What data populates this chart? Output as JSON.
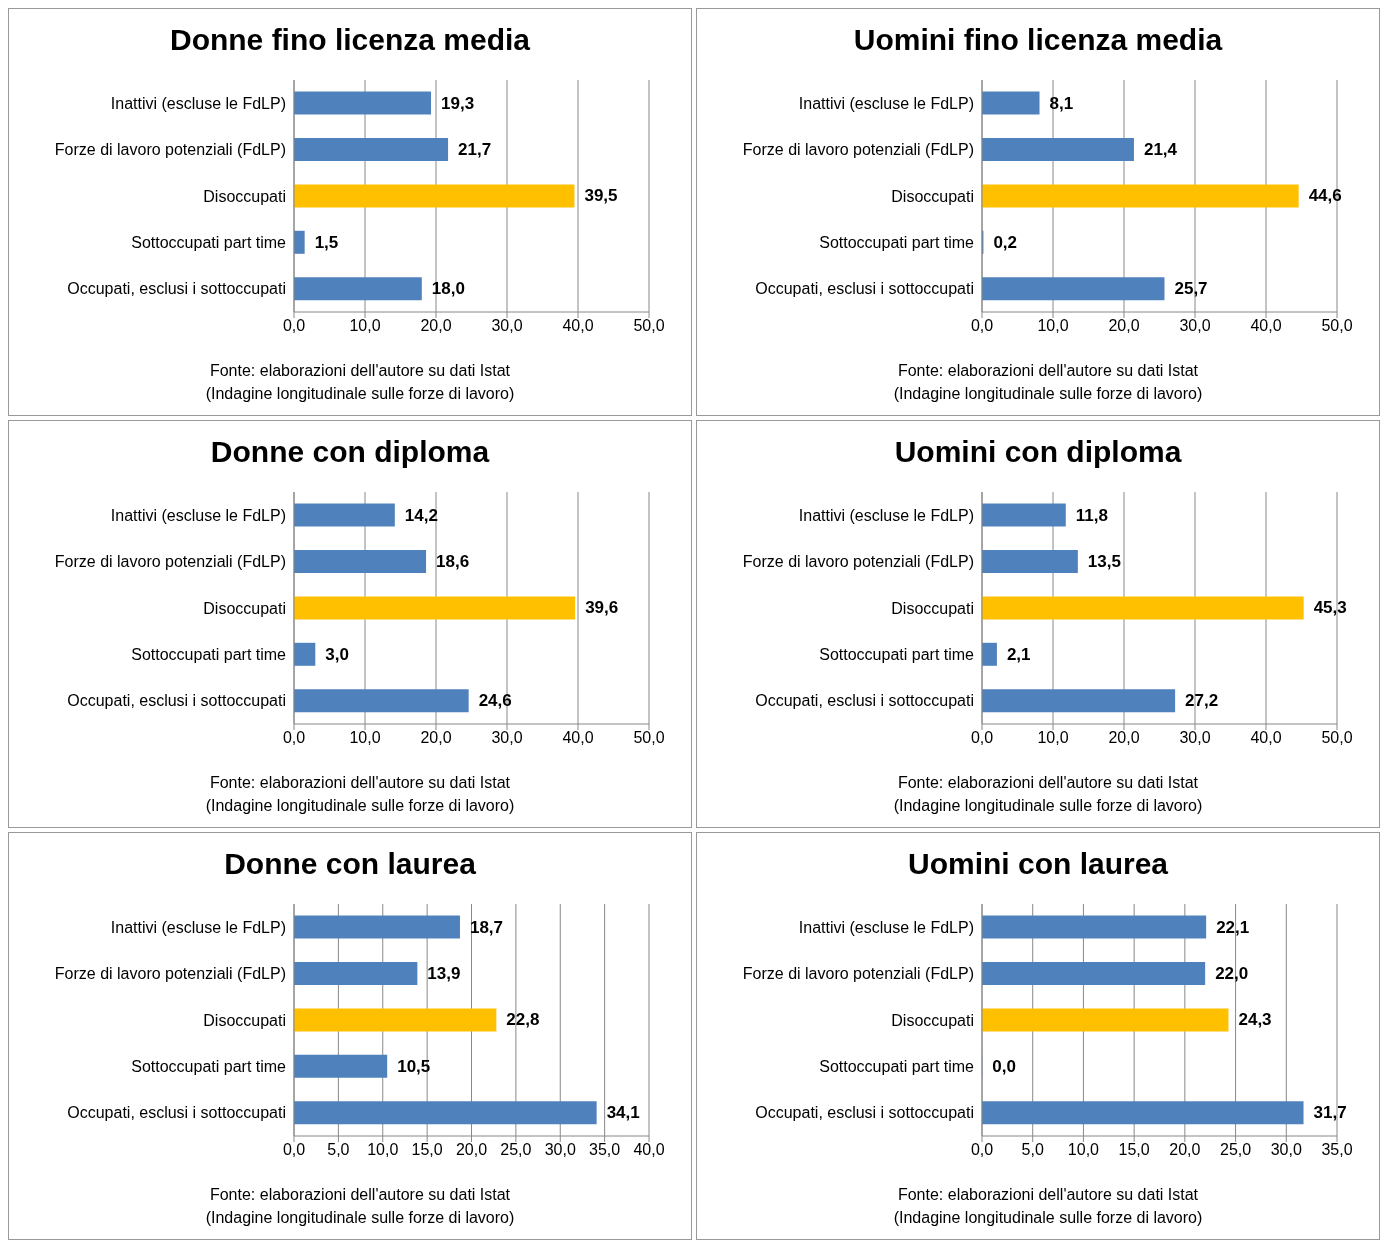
{
  "chart_data": [
    {
      "type": "bar",
      "orientation": "horizontal",
      "title": "Donne fino licenza media",
      "categories": [
        "Inattivi (escluse le FdLP)",
        "Forze di lavoro potenziali (FdLP)",
        "Disoccupati",
        "Sottoccupati part time",
        "Occupati, esclusi i sottoccupati"
      ],
      "values": [
        19.3,
        21.7,
        39.5,
        1.5,
        18.0
      ],
      "value_labels": [
        "19,3",
        "21,7",
        "39,5",
        "1,5",
        "18,0"
      ],
      "colors": [
        "#4f81bd",
        "#4f81bd",
        "#ffc000",
        "#4f81bd",
        "#4f81bd"
      ],
      "xlim": [
        0,
        50
      ],
      "xticks": [
        {
          "value": 0,
          "label": "0,0"
        },
        {
          "value": 10,
          "label": "10,0"
        },
        {
          "value": 20,
          "label": "20,0"
        },
        {
          "value": 30,
          "label": "30,0"
        },
        {
          "value": 40,
          "label": "40,0"
        },
        {
          "value": 50,
          "label": "50,0"
        }
      ],
      "grid": "x",
      "annotations": [
        "Fonte: elaborazioni dell'autore su dati Istat",
        "(Indagine longitudinale sulle forze di lavoro)"
      ]
    },
    {
      "type": "bar",
      "orientation": "horizontal",
      "title": "Uomini fino licenza media",
      "categories": [
        "Inattivi (escluse le FdLP)",
        "Forze di lavoro potenziali (FdLP)",
        "Disoccupati",
        "Sottoccupati part time",
        "Occupati, esclusi i sottoccupati"
      ],
      "values": [
        8.1,
        21.4,
        44.6,
        0.2,
        25.7
      ],
      "value_labels": [
        "8,1",
        "21,4",
        "44,6",
        "0,2",
        "25,7"
      ],
      "colors": [
        "#4f81bd",
        "#4f81bd",
        "#ffc000",
        "#4f81bd",
        "#4f81bd"
      ],
      "xlim": [
        0,
        50
      ],
      "xticks": [
        {
          "value": 0,
          "label": "0,0"
        },
        {
          "value": 10,
          "label": "10,0"
        },
        {
          "value": 20,
          "label": "20,0"
        },
        {
          "value": 30,
          "label": "30,0"
        },
        {
          "value": 40,
          "label": "40,0"
        },
        {
          "value": 50,
          "label": "50,0"
        }
      ],
      "grid": "x",
      "annotations": [
        "Fonte: elaborazioni dell'autore su dati Istat",
        "(Indagine longitudinale sulle forze di lavoro)"
      ]
    },
    {
      "type": "bar",
      "orientation": "horizontal",
      "title": "Donne con diploma",
      "categories": [
        "Inattivi (escluse le FdLP)",
        "Forze di lavoro potenziali (FdLP)",
        "Disoccupati",
        "Sottoccupati part time",
        "Occupati, esclusi i sottoccupati"
      ],
      "values": [
        14.2,
        18.6,
        39.6,
        3.0,
        24.6
      ],
      "value_labels": [
        "14,2",
        "18,6",
        "39,6",
        "3,0",
        "24,6"
      ],
      "colors": [
        "#4f81bd",
        "#4f81bd",
        "#ffc000",
        "#4f81bd",
        "#4f81bd"
      ],
      "xlim": [
        0,
        50
      ],
      "xticks": [
        {
          "value": 0,
          "label": "0,0"
        },
        {
          "value": 10,
          "label": "10,0"
        },
        {
          "value": 20,
          "label": "20,0"
        },
        {
          "value": 30,
          "label": "30,0"
        },
        {
          "value": 40,
          "label": "40,0"
        },
        {
          "value": 50,
          "label": "50,0"
        }
      ],
      "grid": "x",
      "annotations": [
        "Fonte: elaborazioni dell'autore su dati Istat",
        "(Indagine longitudinale sulle forze di lavoro)"
      ]
    },
    {
      "type": "bar",
      "orientation": "horizontal",
      "title": "Uomini con diploma",
      "categories": [
        "Inattivi (escluse le FdLP)",
        "Forze di lavoro potenziali (FdLP)",
        "Disoccupati",
        "Sottoccupati part time",
        "Occupati, esclusi i sottoccupati"
      ],
      "values": [
        11.8,
        13.5,
        45.3,
        2.1,
        27.2
      ],
      "value_labels": [
        "11,8",
        "13,5",
        "45,3",
        "2,1",
        "27,2"
      ],
      "colors": [
        "#4f81bd",
        "#4f81bd",
        "#ffc000",
        "#4f81bd",
        "#4f81bd"
      ],
      "xlim": [
        0,
        50
      ],
      "xticks": [
        {
          "value": 0,
          "label": "0,0"
        },
        {
          "value": 10,
          "label": "10,0"
        },
        {
          "value": 20,
          "label": "20,0"
        },
        {
          "value": 30,
          "label": "30,0"
        },
        {
          "value": 40,
          "label": "40,0"
        },
        {
          "value": 50,
          "label": "50,0"
        }
      ],
      "grid": "x",
      "annotations": [
        "Fonte: elaborazioni dell'autore su dati Istat",
        "(Indagine longitudinale sulle forze di lavoro)"
      ]
    },
    {
      "type": "bar",
      "orientation": "horizontal",
      "title": "Donne con laurea",
      "categories": [
        "Inattivi (escluse le FdLP)",
        "Forze di lavoro potenziali (FdLP)",
        "Disoccupati",
        "Sottoccupati part time",
        "Occupati, esclusi i sottoccupati"
      ],
      "values": [
        18.7,
        13.9,
        22.8,
        10.5,
        34.1
      ],
      "value_labels": [
        "18,7",
        "13,9",
        "22,8",
        "10,5",
        "34,1"
      ],
      "colors": [
        "#4f81bd",
        "#4f81bd",
        "#ffc000",
        "#4f81bd",
        "#4f81bd"
      ],
      "xlim": [
        0,
        40
      ],
      "xticks": [
        {
          "value": 0,
          "label": "0,0"
        },
        {
          "value": 5,
          "label": "5,0"
        },
        {
          "value": 10,
          "label": "10,0"
        },
        {
          "value": 15,
          "label": "15,0"
        },
        {
          "value": 20,
          "label": "20,0"
        },
        {
          "value": 25,
          "label": "25,0"
        },
        {
          "value": 30,
          "label": "30,0"
        },
        {
          "value": 35,
          "label": "35,0"
        },
        {
          "value": 40,
          "label": "40,0"
        }
      ],
      "grid": "x",
      "annotations": [
        "Fonte: elaborazioni dell'autore su dati Istat",
        "(Indagine longitudinale sulle forze di lavoro)"
      ]
    },
    {
      "type": "bar",
      "orientation": "horizontal",
      "title": "Uomini con laurea",
      "categories": [
        "Inattivi (escluse le FdLP)",
        "Forze di lavoro potenziali (FdLP)",
        "Disoccupati",
        "Sottoccupati part time",
        "Occupati, esclusi i sottoccupati"
      ],
      "values": [
        22.1,
        22.0,
        24.3,
        0.0,
        31.7
      ],
      "value_labels": [
        "22,1",
        "22,0",
        "24,3",
        "0,0",
        "31,7"
      ],
      "colors": [
        "#4f81bd",
        "#4f81bd",
        "#ffc000",
        "#4f81bd",
        "#4f81bd"
      ],
      "xlim": [
        0,
        35
      ],
      "xticks": [
        {
          "value": 0,
          "label": "0,0"
        },
        {
          "value": 5,
          "label": "5,0"
        },
        {
          "value": 10,
          "label": "10,0"
        },
        {
          "value": 15,
          "label": "15,0"
        },
        {
          "value": 20,
          "label": "20,0"
        },
        {
          "value": 25,
          "label": "25,0"
        },
        {
          "value": 30,
          "label": "30,0"
        },
        {
          "value": 35,
          "label": "35,0"
        }
      ],
      "grid": "x",
      "annotations": [
        "Fonte: elaborazioni dell'autore su dati Istat",
        "(Indagine longitudinale sulle forze di lavoro)"
      ]
    }
  ]
}
